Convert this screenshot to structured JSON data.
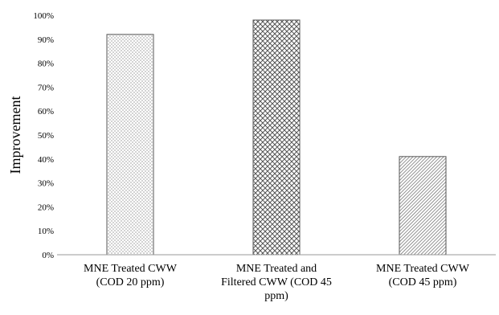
{
  "chart_data": {
    "type": "bar",
    "title": "",
    "xlabel": "",
    "ylabel": "Improvement",
    "ylim": [
      0,
      1
    ],
    "yticks": [
      "0%",
      "10%",
      "20%",
      "30%",
      "40%",
      "50%",
      "60%",
      "70%",
      "80%",
      "90%",
      "100%"
    ],
    "categories": [
      [
        "MNE Treated CWW",
        "(COD 20 ppm)"
      ],
      [
        "MNE Treated and",
        "Filtered CWW (COD 45",
        "ppm)"
      ],
      [
        "MNE Treated CWW",
        "(COD 45 ppm)"
      ]
    ],
    "values": [
      0.92,
      0.98,
      0.41
    ],
    "bar_patterns": [
      "dots",
      "crosshatch",
      "diagonal"
    ],
    "grid": false,
    "legend": "none",
    "colors": {
      "bar_outline": "#555555",
      "axis": "#999999",
      "pattern": "#555555"
    }
  }
}
